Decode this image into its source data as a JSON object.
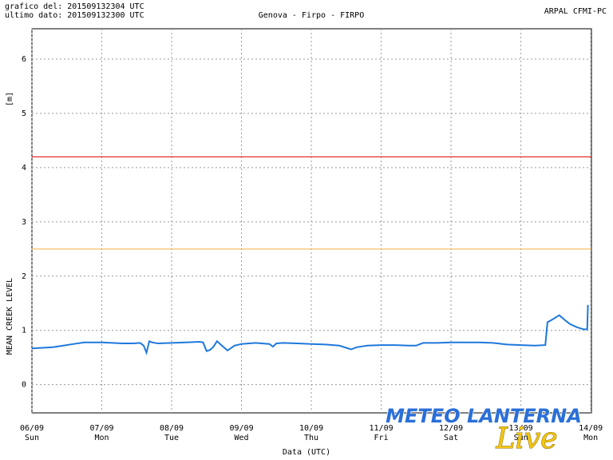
{
  "header": {
    "issued": "grafico del: 201509132304 UTC",
    "last_data": "ultimo dato: 201509132300 UTC",
    "source": "ARPAL CFMI-PC"
  },
  "watermark": {
    "title": "METEO LANTERNA",
    "subtitle": "Live"
  },
  "chart_data": {
    "type": "line",
    "title": "Genova - Firpo - FIRPO",
    "y_label": "MEAN CREEK LEVEL",
    "y_unit": "[m]",
    "x_label": "Data (UTC)",
    "xlim": [
      0,
      8.01
    ],
    "ylim": [
      -0.52,
      6.56
    ],
    "xticks": [
      {
        "value": 0,
        "label": "06/09"
      },
      {
        "value": 1,
        "label": "07/09"
      },
      {
        "value": 2,
        "label": "08/09"
      },
      {
        "value": 3,
        "label": "09/09"
      },
      {
        "value": 4,
        "label": "10/09"
      },
      {
        "value": 5,
        "label": "11/09"
      },
      {
        "value": 6,
        "label": "12/09"
      },
      {
        "value": 7,
        "label": "13/09"
      },
      {
        "value": 8,
        "label": "14/09"
      }
    ],
    "xtick_weekdays": [
      "Sun",
      "Mon",
      "Tue",
      "Wed",
      "Thu",
      "Fri",
      "Sat",
      "Sun",
      "Mon"
    ],
    "yticks": [
      0,
      1,
      2,
      3,
      4,
      5,
      6
    ],
    "grid": true,
    "thresholds": [
      {
        "value": 4.2,
        "color": "#e00000"
      },
      {
        "value": 2.5,
        "color": "#f0b040"
      }
    ],
    "series": [
      {
        "color": "#1e78dc",
        "x": [
          0,
          0.15,
          0.3,
          0.45,
          0.6,
          0.75,
          0.9,
          1.0,
          1.15,
          1.3,
          1.45,
          1.55,
          1.6,
          1.64,
          1.68,
          1.72,
          1.8,
          2.0,
          2.2,
          2.4,
          2.45,
          2.5,
          2.55,
          2.6,
          2.65,
          2.72,
          2.8,
          2.9,
          3.0,
          3.2,
          3.4,
          3.45,
          3.5,
          3.6,
          3.8,
          4.0,
          4.2,
          4.4,
          4.5,
          4.57,
          4.65,
          4.8,
          5.0,
          5.2,
          5.4,
          5.5,
          5.6,
          5.8,
          6.0,
          6.2,
          6.4,
          6.6,
          6.8,
          7.0,
          7.2,
          7.35,
          7.38,
          7.45,
          7.55,
          7.62,
          7.7,
          7.8,
          7.9,
          7.95,
          7.96
        ],
        "values": [
          0.67,
          0.68,
          0.69,
          0.72,
          0.75,
          0.78,
          0.78,
          0.78,
          0.77,
          0.76,
          0.76,
          0.77,
          0.72,
          0.59,
          0.8,
          0.78,
          0.76,
          0.77,
          0.78,
          0.79,
          0.78,
          0.62,
          0.64,
          0.7,
          0.8,
          0.72,
          0.63,
          0.72,
          0.75,
          0.77,
          0.75,
          0.7,
          0.76,
          0.77,
          0.76,
          0.75,
          0.74,
          0.72,
          0.68,
          0.65,
          0.69,
          0.72,
          0.73,
          0.73,
          0.72,
          0.72,
          0.77,
          0.77,
          0.78,
          0.78,
          0.78,
          0.77,
          0.74,
          0.73,
          0.72,
          0.73,
          1.15,
          1.2,
          1.28,
          1.2,
          1.12,
          1.06,
          1.02,
          1.02,
          1.47
        ]
      }
    ]
  }
}
